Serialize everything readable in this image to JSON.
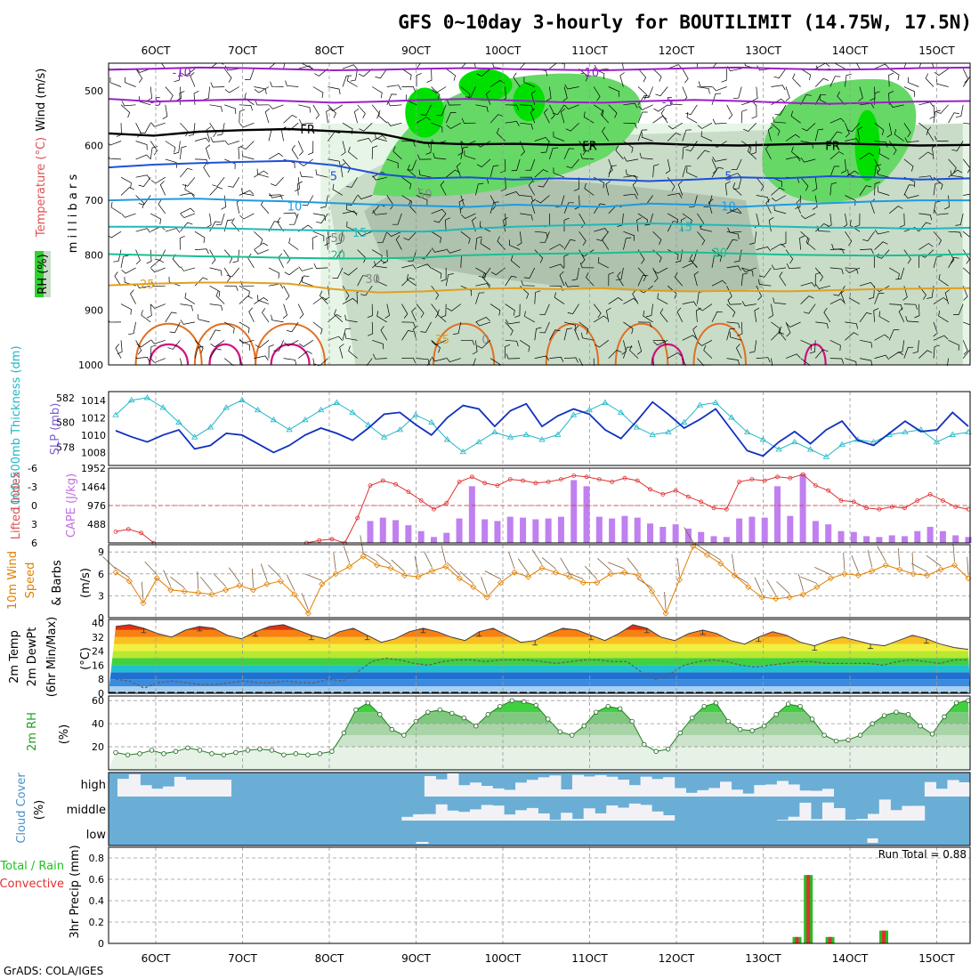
{
  "title": "GFS 0~10day 3-hourly for BOUTILIMIT (14.75W, 17.5N)",
  "footer": "GrADS: COLA/IGES",
  "x_ticks": [
    "6OCT",
    "7OCT",
    "8OCT",
    "9OCT",
    "10OCT",
    "11OCT",
    "12OCT",
    "13OCT",
    "14OCT",
    "15OCT"
  ],
  "colors": {
    "frame": "#000000",
    "grid": "#999999",
    "wind": "#000000",
    "rh_light": "#e6f5e6",
    "rh_mid": "#c8dcc8",
    "rh_grey": "#a8bca8",
    "rh_green": "#66d866",
    "rh_bright": "#00e000",
    "temp_m10": "#9b1fc8",
    "temp_fr": "#000000",
    "temp_5": "#1e4fd8",
    "temp_10": "#1e9be0",
    "temp_15": "#20b8b8",
    "temp_20": "#18c090",
    "temp_25": "#e0a020",
    "temp_30": "#e07020",
    "temp_35": "#d01080",
    "slp": "#1030c0",
    "thick": "#20b8c8",
    "li": "#e03030",
    "cape": "#c080f0",
    "wind10": "#e08000",
    "barb10": "#806040",
    "cloud": "#6aaed6",
    "cloud_clear": "#f2f2f6",
    "precip_total": "#20c020",
    "precip_conv": "#e03030"
  },
  "chart_data": [
    {
      "panel": "upper-air",
      "type": "heatmap",
      "ylabel": "millibars",
      "left_labels": [
        "Temperature (°C)",
        "Wind (m/s)",
        "RH (%)"
      ],
      "y_ticks": [
        "500",
        "600",
        "700",
        "800",
        "900",
        "1000"
      ],
      "ylim": [
        1000,
        450
      ],
      "isotherm_labels": [
        {
          "text": "-10",
          "series": "-10"
        },
        {
          "text": "-10",
          "series": "-10"
        },
        {
          "text": "-5",
          "series": "-5"
        },
        {
          "text": "-5",
          "series": "-5"
        },
        {
          "text": "FR",
          "series": "FR"
        },
        {
          "text": "FR",
          "series": "FR"
        },
        {
          "text": "FR",
          "series": "FR"
        },
        {
          "text": "5",
          "series": "5"
        },
        {
          "text": "5",
          "series": "5"
        },
        {
          "text": "10",
          "series": "10"
        },
        {
          "text": "10",
          "series": "10"
        },
        {
          "text": "15",
          "series": "15"
        },
        {
          "text": "15",
          "series": "15"
        },
        {
          "text": "20",
          "series": "20"
        },
        {
          "text": "20",
          "series": "20"
        },
        {
          "text": "25",
          "series": "25"
        },
        {
          "text": "50",
          "series": "rh"
        },
        {
          "text": "50",
          "series": "rh"
        },
        {
          "text": "30",
          "series": "rh"
        },
        {
          "text": "35",
          "series": "35"
        },
        {
          "text": "0",
          "series": "rh"
        }
      ],
      "isotherms": [
        {
          "name": "-10",
          "p": [
            462,
            460,
            458,
            459,
            461,
            463,
            462,
            460,
            459,
            461,
            462,
            463,
            461,
            459,
            458,
            460,
            462,
            461,
            459,
            458
          ]
        },
        {
          "name": "-5",
          "p": [
            515,
            520,
            518,
            516,
            519,
            522,
            520,
            517,
            515,
            518,
            521,
            522,
            519,
            517,
            519,
            522,
            524,
            522,
            520,
            519
          ]
        },
        {
          "name": "FR",
          "p": [
            578,
            582,
            575,
            572,
            570,
            574,
            578,
            595,
            598,
            597,
            599,
            598,
            596,
            599,
            600,
            598,
            596,
            598,
            600,
            599
          ]
        },
        {
          "name": "5",
          "p": [
            640,
            635,
            632,
            630,
            628,
            636,
            652,
            660,
            658,
            662,
            660,
            662,
            665,
            662,
            658,
            660,
            656,
            658,
            662,
            660
          ]
        },
        {
          "name": "10",
          "p": [
            700,
            698,
            697,
            700,
            702,
            705,
            708,
            710,
            712,
            708,
            710,
            712,
            706,
            708,
            712,
            708,
            705,
            702,
            700,
            700
          ]
        },
        {
          "name": "15",
          "p": [
            748,
            748,
            750,
            752,
            754,
            755,
            756,
            757,
            752,
            748,
            746,
            744,
            742,
            744,
            746,
            748,
            750,
            750,
            752,
            750
          ]
        },
        {
          "name": "20",
          "p": [
            798,
            800,
            802,
            803,
            805,
            806,
            806,
            804,
            800,
            798,
            797,
            796,
            794,
            795,
            797,
            799,
            800,
            801,
            800,
            798
          ]
        },
        {
          "name": "25",
          "p": [
            855,
            852,
            850,
            850,
            852,
            862,
            868,
            866,
            862,
            860,
            862,
            860,
            864,
            866,
            865,
            866,
            864,
            862,
            861,
            860
          ]
        }
      ]
    },
    {
      "panel": "slp-thickness",
      "type": "line",
      "left_labels": [
        "1000-500mb Thickness (dm)",
        "SLP (mb)"
      ],
      "y_ticks_left": [
        "578",
        "580",
        "582"
      ],
      "y_ticks_right": [
        "1008",
        "1010",
        "1012",
        "1014"
      ],
      "thickness_ylim": [
        576.5,
        582.5
      ],
      "slp_ylim": [
        1006.5,
        1015
      ],
      "thickness": [
        580.6,
        581.8,
        582.0,
        581.2,
        580.0,
        578.8,
        579.6,
        581.2,
        581.8,
        581.0,
        580.2,
        579.4,
        580.2,
        581.0,
        581.6,
        580.8,
        579.8,
        578.8,
        579.4,
        580.6,
        580.0,
        578.6,
        577.6,
        578.4,
        579.2,
        578.8,
        579.0,
        578.6,
        579.0,
        580.6,
        581.0,
        581.6,
        580.8,
        579.6,
        579.0,
        579.2,
        580.0,
        581.4,
        581.6,
        580.4,
        579.2,
        578.6,
        577.8,
        578.4,
        577.8,
        577.2,
        578.2,
        578.6,
        578.4,
        579.0,
        579.2,
        579.4,
        578.4,
        579.0,
        579.2
      ],
      "slp": [
        1010.5,
        1009.8,
        1009.2,
        1010.0,
        1010.6,
        1008.4,
        1008.8,
        1010.2,
        1010.0,
        1009.0,
        1008.0,
        1008.8,
        1010.0,
        1010.8,
        1010.2,
        1009.4,
        1010.8,
        1012.4,
        1012.6,
        1011.2,
        1010.0,
        1012.0,
        1013.4,
        1013.0,
        1011.0,
        1012.8,
        1013.6,
        1011.0,
        1012.2,
        1013.0,
        1012.4,
        1010.6,
        1009.6,
        1011.6,
        1013.8,
        1012.4,
        1010.8,
        1011.8,
        1013.0,
        1010.6,
        1008.2,
        1007.6,
        1009.2,
        1010.4,
        1009.0,
        1010.6,
        1011.6,
        1009.4,
        1008.8,
        1010.2,
        1011.6,
        1010.4,
        1010.6,
        1012.6,
        1011.0
      ]
    },
    {
      "panel": "cape-li",
      "type": "bar",
      "left_labels": [
        "Lifted Index",
        "CAPE (J/kg)"
      ],
      "y_ticks_left": [
        "-6",
        "-3",
        "0",
        "3",
        "6"
      ],
      "y_ticks_right": [
        "1952",
        "1464",
        "976",
        "488"
      ],
      "li_ylim": [
        6,
        -6
      ],
      "cape_ylim": [
        0,
        1952
      ],
      "lifted_index": [
        4.2,
        3.8,
        4.4,
        6.2,
        null,
        null,
        null,
        null,
        null,
        null,
        null,
        null,
        null,
        null,
        null,
        6.0,
        5.6,
        5.4,
        6.0,
        2.0,
        -3.2,
        -4.0,
        -3.4,
        -2.2,
        -0.8,
        0.6,
        -0.4,
        -3.8,
        -4.6,
        -3.6,
        -3.2,
        -4.2,
        -4.0,
        -3.6,
        -3.8,
        -4.2,
        -4.8,
        -4.6,
        -4.2,
        -3.8,
        -4.4,
        -4.0,
        -2.6,
        -1.8,
        -2.4,
        -1.4,
        -0.6,
        0.4,
        0.6,
        -3.8,
        -4.2,
        -4.0,
        -4.6,
        -4.4,
        -5.0,
        -3.2,
        -2.4,
        -0.8,
        -0.6,
        0.4,
        0.6,
        0.2,
        0.4,
        -0.8,
        -1.8,
        -0.8,
        0.2,
        0.6
      ]
    },
    {
      "panel": "wind10m",
      "type": "line",
      "left_labels": [
        "10m Wind",
        "Speed",
        "& Barbs",
        "(m/s)"
      ],
      "y_ticks": [
        "0",
        "3",
        "6",
        "9"
      ],
      "ylim": [
        0,
        10
      ],
      "speed": [
        6.2,
        5.0,
        2.0,
        5.4,
        3.8,
        3.6,
        3.4,
        3.2,
        3.8,
        4.4,
        3.8,
        4.6,
        5.0,
        3.2,
        0.6,
        4.6,
        6.0,
        7.0,
        8.4,
        7.2,
        6.8,
        5.8,
        5.6,
        6.4,
        7.0,
        5.4,
        4.2,
        2.8,
        4.8,
        6.2,
        5.6,
        6.8,
        6.2,
        5.6,
        4.8,
        4.8,
        6.0,
        6.2,
        5.8,
        3.6,
        0.6,
        5.2,
        9.8,
        8.6,
        7.4,
        5.8,
        4.2,
        2.8,
        2.6,
        2.8,
        3.2,
        4.2,
        5.4,
        6.0,
        5.8,
        6.4,
        7.2,
        6.6,
        6.0,
        5.8,
        6.6,
        7.2,
        5.4
      ]
    },
    {
      "panel": "temp2m",
      "type": "area",
      "left_labels": [
        "2m Temp",
        "2m DewPt",
        "(6hr Min/Max)",
        "(°C)"
      ],
      "y_ticks": [
        "0",
        "8",
        "16",
        "24",
        "32",
        "40"
      ],
      "ylim": [
        0,
        42
      ],
      "temp_max": [
        38,
        39,
        37,
        34,
        32,
        36,
        38,
        37,
        33,
        31,
        35,
        38,
        39,
        36,
        33,
        31,
        35,
        37,
        33,
        29,
        31,
        35,
        37,
        35,
        32,
        30,
        35,
        37,
        33,
        29,
        30,
        34,
        37,
        36,
        33,
        30,
        34,
        39,
        37,
        32,
        30,
        34,
        36,
        34,
        30,
        28,
        32,
        35,
        33,
        29,
        27,
        30,
        32,
        30,
        28,
        27,
        30,
        33,
        31,
        28,
        26,
        25
      ],
      "dewpoint": [
        8,
        7,
        3,
        6,
        7,
        6,
        5,
        5,
        6,
        7,
        6,
        6,
        7,
        6,
        6,
        8,
        7,
        12,
        18,
        20,
        19,
        17,
        16,
        18,
        19,
        19,
        18,
        19,
        19,
        19,
        18,
        17,
        18,
        19,
        19,
        18,
        18,
        12,
        8,
        11,
        16,
        18,
        19,
        18,
        16,
        15,
        16,
        17,
        18,
        18,
        17,
        17,
        17,
        17,
        16,
        18,
        19,
        18,
        17,
        19,
        19
      ]
    },
    {
      "panel": "rh2m",
      "type": "area",
      "left_labels": [
        "2m RH",
        "(%)"
      ],
      "y_ticks": [
        "20",
        "40",
        "60"
      ],
      "ylim": [
        0,
        64
      ],
      "rh": [
        15,
        13,
        14,
        17,
        14,
        16,
        19,
        17,
        14,
        13,
        15,
        17,
        18,
        17,
        13,
        14,
        13,
        14,
        16,
        32,
        52,
        58,
        48,
        35,
        30,
        42,
        50,
        52,
        49,
        45,
        38,
        48,
        55,
        60,
        59,
        56,
        44,
        33,
        30,
        38,
        50,
        55,
        53,
        42,
        22,
        16,
        18,
        32,
        45,
        55,
        58,
        42,
        35,
        34,
        38,
        48,
        57,
        55,
        44,
        30,
        25,
        26,
        30,
        40,
        47,
        50,
        48,
        38,
        31,
        46,
        58,
        60
      ]
    },
    {
      "panel": "cloud",
      "type": "bar",
      "left_labels": [
        "Cloud Cover",
        "(%)"
      ],
      "row_labels": [
        "high",
        "middle",
        "low"
      ]
    },
    {
      "panel": "precip",
      "type": "bar",
      "left_labels": [
        "Total / Rain",
        "Convective",
        "3hr Precip (mm)"
      ],
      "y_ticks": [
        "0",
        "0.2",
        "0.4",
        "0.6",
        "0.8"
      ],
      "ylim": [
        0,
        0.9
      ],
      "annotation": "Run Total = 0.88",
      "bars": [
        {
          "day": 13.39,
          "total": 0.06,
          "conv": 0.06
        },
        {
          "day": 13.52,
          "total": 0.64,
          "conv": 0.64
        },
        {
          "day": 13.77,
          "total": 0.06,
          "conv": 0.06
        },
        {
          "day": 14.39,
          "total": 0.12,
          "conv": 0.12
        }
      ]
    }
  ]
}
